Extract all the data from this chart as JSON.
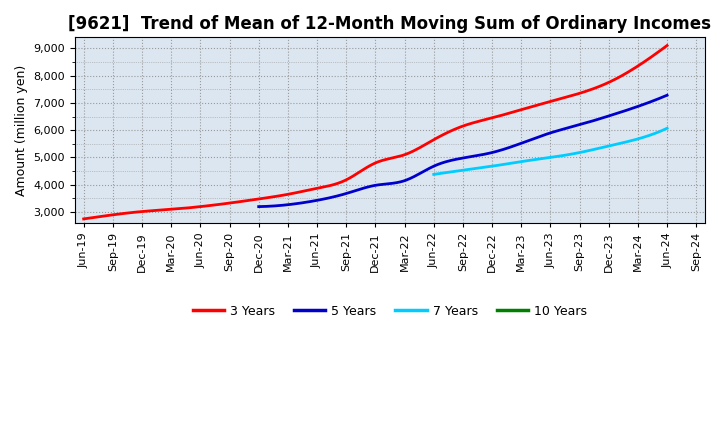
{
  "title": "[9621]  Trend of Mean of 12-Month Moving Sum of Ordinary Incomes",
  "ylabel": "Amount (million yen)",
  "background_color": "#ffffff",
  "grid_color": "#999999",
  "plot_bg_color": "#dce6f1",
  "tick_labels": [
    "Jun-19",
    "Sep-19",
    "Dec-19",
    "Mar-20",
    "Jun-20",
    "Sep-20",
    "Dec-20",
    "Mar-21",
    "Jun-21",
    "Sep-21",
    "Dec-21",
    "Mar-22",
    "Jun-22",
    "Sep-22",
    "Dec-22",
    "Mar-23",
    "Jun-23",
    "Sep-23",
    "Dec-23",
    "Mar-24",
    "Jun-24",
    "Sep-24"
  ],
  "series": {
    "3 Years": {
      "color": "#ff0000",
      "data": [
        2750,
        2900,
        3020,
        3100,
        3200,
        3330,
        3480,
        3650,
        3870,
        4180,
        4800,
        5100,
        5650,
        6150,
        6450,
        6750,
        7050,
        7350,
        7750,
        8350,
        9100,
        null
      ]
    },
    "5 Years": {
      "color": "#0000cc",
      "data": [
        null,
        null,
        null,
        null,
        null,
        null,
        3200,
        3270,
        3430,
        3680,
        3980,
        4150,
        4680,
        4980,
        5180,
        5520,
        5900,
        6200,
        6520,
        6870,
        7280,
        null
      ]
    },
    "7 Years": {
      "color": "#00ccff",
      "data": [
        null,
        null,
        null,
        null,
        null,
        null,
        null,
        null,
        null,
        null,
        null,
        null,
        4380,
        4530,
        4680,
        4850,
        5000,
        5180,
        5420,
        5680,
        6070,
        null
      ]
    },
    "10 Years": {
      "color": "#008000",
      "data": [
        null,
        null,
        null,
        null,
        null,
        null,
        null,
        null,
        null,
        null,
        null,
        null,
        null,
        null,
        null,
        null,
        null,
        null,
        null,
        null,
        null,
        null
      ]
    }
  },
  "ylim": [
    2600,
    9400
  ],
  "yticks": [
    3000,
    4000,
    5000,
    6000,
    7000,
    8000,
    9000
  ],
  "yminor": 500,
  "legend_entries": [
    "3 Years",
    "5 Years",
    "7 Years",
    "10 Years"
  ],
  "legend_colors": [
    "#ff0000",
    "#0000cc",
    "#00ccff",
    "#008000"
  ],
  "title_fontsize": 12,
  "ylabel_fontsize": 9,
  "tick_fontsize": 8
}
